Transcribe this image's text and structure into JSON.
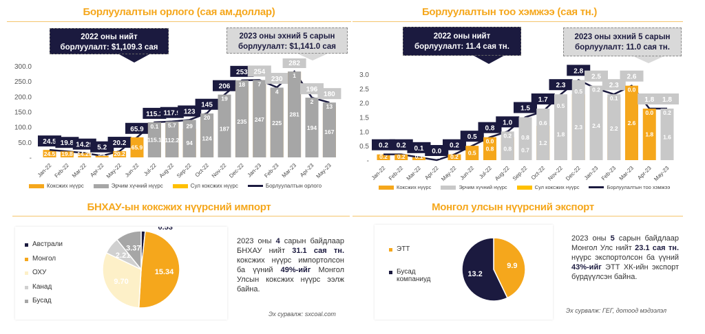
{
  "colors": {
    "coking": "#f5a71c",
    "thermal": "#a6a6a6",
    "semi": "#ffc000",
    "line": "#1b1a3f",
    "navy": "#1b1a3f",
    "grey_label": "#c8c8c8"
  },
  "chart_data": [
    {
      "type": "bar",
      "title": "Борлуулалтын орлого (сая ам.доллар)",
      "categories": [
        "Jan-22",
        "Feb-22",
        "Mar-22",
        "Apr-22",
        "May-22",
        "Jun-22",
        "Jul-22",
        "Aug-22",
        "Sep-22",
        "Oct-22",
        "Nov-22",
        "Dec-22",
        "Jan-23",
        "Feb-23",
        "Mar-23",
        "Apr-23",
        "May-23"
      ],
      "ylim": [
        0,
        300
      ],
      "yticks": [
        "-",
        "50.0",
        "100.0",
        "150.0",
        "200.0",
        "250.0",
        "300.0"
      ],
      "ytick_values": [
        0,
        50,
        100,
        150,
        200,
        250,
        300
      ],
      "series": [
        {
          "name": "Коксжих нүүрс",
          "values": [
            24.5,
            19.8,
            14.29,
            5.2,
            20.2,
            65.9,
            115.1,
            112.2,
            94,
            124,
            187,
            235,
            247,
            225,
            281,
            194,
            167
          ]
        },
        {
          "name": "Эрчим хүчний нүүрс",
          "values": [
            0,
            0,
            0,
            0,
            0,
            0,
            0.1,
            5.7,
            29,
            20,
            19,
            18,
            7,
            4,
            1,
            2,
            13
          ]
        },
        {
          "name": "Сул коксжих нүүрс",
          "values": [
            0,
            0,
            0,
            0,
            0,
            0,
            0,
            0,
            0,
            0,
            0,
            0,
            0,
            0,
            0,
            0,
            0
          ]
        },
        {
          "name": "Борлуулалтын орлого",
          "type": "line",
          "values": [
            24.5,
            19.8,
            14.29,
            5.2,
            20.2,
            65.9,
            115.2,
            117.9,
            123,
            145,
            206,
            253,
            254,
            230,
            282,
            196,
            180
          ]
        }
      ],
      "total_labels": [
        "24.5",
        "19.8",
        "14.29",
        "5.2",
        "20.2",
        "65.9",
        "115.2",
        "117.9",
        "123",
        "145",
        "206",
        "253",
        "254",
        "230",
        "282",
        "196",
        "180"
      ],
      "seg_labels": [
        "24.5",
        "19.8",
        "14.29",
        "5.2",
        "20.2",
        "65.9",
        "115.1",
        "112.2",
        "94",
        "124",
        "187",
        "235",
        "247",
        "225",
        "281",
        "194",
        "167"
      ],
      "seg2_labels": [
        "",
        "",
        "",
        "",
        "",
        "",
        "0.1",
        "5.7",
        "29",
        "20",
        "19",
        "18",
        "7",
        "4",
        "1",
        "2",
        "13"
      ],
      "callouts": [
        "2022 оны нийт борлуулалт: $1,109.3 сая",
        "2023 оны эхний 5 сарын борлуулалт: $1,141.0 сая"
      ]
    },
    {
      "type": "bar",
      "title": "Борлуулалтын тоо хэмжээ (сая тн.)",
      "categories": [
        "Jan-22",
        "Feb-22",
        "Mar-22",
        "Apr-22",
        "May-22",
        "Jun-22",
        "Jul-22",
        "Aug-22",
        "Sep-22",
        "Oct-22",
        "Nov-22",
        "Dec-22",
        "Jan-23",
        "Feb-23",
        "Mar-23",
        "Apr-23",
        "May-23"
      ],
      "ylim": [
        0,
        3
      ],
      "yticks": [
        "-",
        "0.5",
        "1.0",
        "1.5",
        "2.0",
        "2.5",
        "3.0"
      ],
      "ytick_values": [
        0,
        0.5,
        1,
        1.5,
        2,
        2.5,
        3
      ],
      "series": [
        {
          "name": "Коксжих нүүрс",
          "values": [
            0.2,
            0.2,
            0.1,
            0.0,
            0.2,
            0.5,
            0.8,
            0.8,
            0.7,
            1.2,
            1.8,
            2.3,
            2.4,
            2.2,
            2.6,
            1.8,
            1.6
          ]
        },
        {
          "name": "Эрчим хүчний нүүрс",
          "values": [
            0,
            0,
            0,
            0,
            0,
            0,
            0.0,
            0.2,
            0.8,
            0.6,
            0.5,
            0.5,
            0.2,
            0.1,
            0.0,
            0.0,
            0.2
          ]
        },
        {
          "name": "Сул коксжих нүүрс",
          "values": [
            0,
            0,
            0,
            0,
            0,
            0,
            0,
            0,
            0,
            0,
            0,
            0,
            0,
            0,
            0,
            0,
            0
          ]
        },
        {
          "name": "Борлуулалтын тоо хэмжээ",
          "type": "line",
          "values": [
            0.2,
            0.2,
            0.1,
            0.0,
            0.2,
            0.5,
            0.8,
            1.0,
            1.5,
            1.7,
            2.3,
            2.8,
            2.5,
            2.3,
            2.6,
            1.8,
            1.8
          ]
        }
      ],
      "total_labels": [
        "0.2",
        "0.2",
        "0.1",
        "0.0",
        "0.2",
        "0.5",
        "0.8",
        "1.0",
        "1.5",
        "1.7",
        "2.3",
        "2.8",
        "2.5",
        "2.3",
        "2.6",
        "1.8",
        "1.8"
      ],
      "seg_labels": [
        "0.2",
        "0.2",
        "0.1",
        "0.0",
        "0.2",
        "0.5",
        "0.8",
        "0.8",
        "0.7",
        "1.2",
        "1.8",
        "2.3",
        "2.4",
        "2.2",
        "2.6",
        "1.8",
        "1.6"
      ],
      "seg2_labels": [
        "",
        "",
        "",
        "",
        "",
        "",
        "0.0",
        "0.2",
        "0.8",
        "0.6",
        "0.5",
        "0.5",
        "0.2",
        "0.1",
        "0.0",
        "0.0",
        "0.2"
      ],
      "callouts": [
        "2022 оны нийт борлуулалт: 11.4 сая тн.",
        "2023 оны эхний 5 сарын борлуулалт: 11.0 сая тн."
      ]
    },
    {
      "type": "pie",
      "title": "БНХАУ-ын коксжих нүүрсний импорт",
      "slices": [
        {
          "name": "Австрали",
          "value": 0.53,
          "label": "0.53",
          "color": "#1b1a3f"
        },
        {
          "name": "Монгол",
          "value": 15.34,
          "label": "15.34",
          "color": "#f5a71c"
        },
        {
          "name": "ОХУ",
          "value": 9.7,
          "label": "9.70",
          "color": "#fdf0c8"
        },
        {
          "name": "Канад",
          "value": 2.21,
          "label": "2.21",
          "color": "#d0d0d0"
        },
        {
          "name": "Бусад",
          "value": 3.37,
          "label": "3.37",
          "color": "#a6a6a6"
        }
      ]
    },
    {
      "type": "pie",
      "title": "Монгол улсын нүүрсний экспорт",
      "slices": [
        {
          "name": "ЭТТ",
          "value": 9.9,
          "label": "9.9",
          "color": "#f5a71c"
        },
        {
          "name": "Бусад компаниуд",
          "value": 13.2,
          "label": "13.2",
          "color": "#1b1a3f"
        }
      ]
    }
  ],
  "callout_text": {
    "rev_2022": [
      "2022 оны нийт",
      "борлуулалт: $1,109.3 сая"
    ],
    "rev_2023": [
      "2023 оны эхний 5 сарын",
      "борлуулалт: $1,141.0 сая"
    ],
    "vol_2022": [
      "2022 оны нийт",
      "борлуулалт: 11.4 сая тн."
    ],
    "vol_2023": [
      "2023 оны эхний 5 сарын",
      "борлуулалт: 11.0 сая тн."
    ]
  },
  "import_note": {
    "segments": [
      {
        "t": "2023 оны ",
        "b": false
      },
      {
        "t": "4",
        "b": true
      },
      {
        "t": " сарын байдлаар БНХАУ нийт ",
        "b": false
      },
      {
        "t": "31.1 сая тн.",
        "b": true
      },
      {
        "t": " коксжих нүүрс импортолсон ба үүний ",
        "b": false
      },
      {
        "t": "49%-ийг",
        "b": true
      },
      {
        "t": " Монгол Улсын коксжих нүүрс ээлж байна.",
        "b": false
      }
    ],
    "source": "Эх сурвалж: sxcoal.com"
  },
  "export_note": {
    "segments": [
      {
        "t": "2023 оны ",
        "b": false
      },
      {
        "t": "5",
        "b": true
      },
      {
        "t": " сарын байдлаар Монгол Улс нийт ",
        "b": false
      },
      {
        "t": "23.1 сая тн.",
        "b": true
      },
      {
        "t": " нүүрс экспортолсон ба үүний ",
        "b": false
      },
      {
        "t": "43%-ийг",
        "b": true
      },
      {
        "t": " ЭТТ ХК-ийн экспорт бүрдүүлсэн байна.",
        "b": false
      }
    ],
    "source": "Эх сурвалж: ГЕГ,  дотоод мэдээлэл"
  }
}
